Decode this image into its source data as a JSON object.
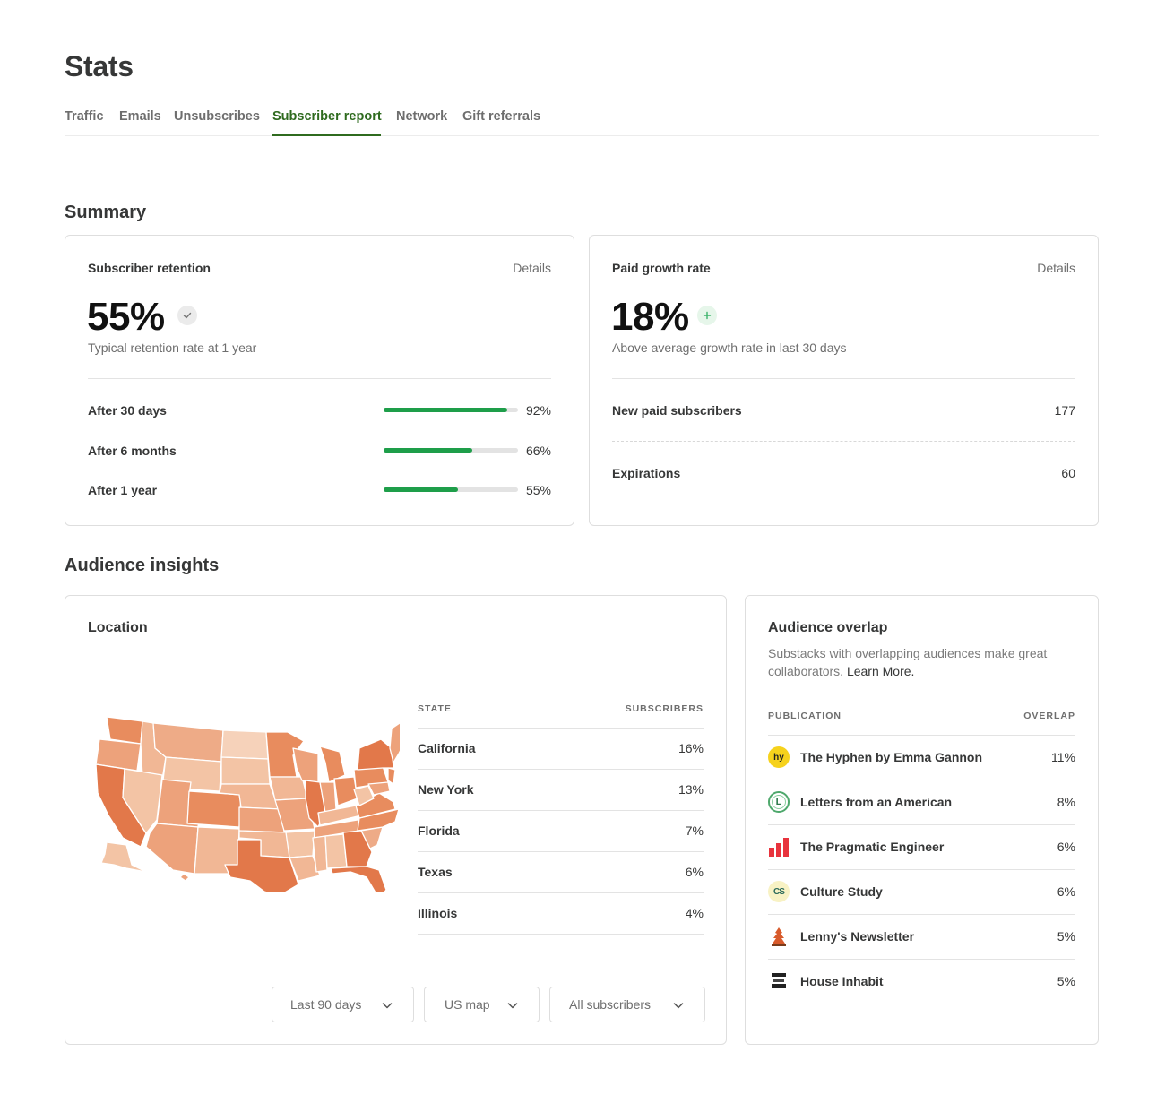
{
  "page": {
    "title": "Stats"
  },
  "tabs": [
    {
      "label": "Traffic"
    },
    {
      "label": "Emails"
    },
    {
      "label": "Unsubscribes"
    },
    {
      "label": "Subscriber report",
      "active": true
    },
    {
      "label": "Network"
    },
    {
      "label": "Gift referrals"
    }
  ],
  "summary": {
    "title": "Summary",
    "retention": {
      "label": "Subscriber retention",
      "details": "Details",
      "value": "55%",
      "badge_icon": "check-icon",
      "subtitle": "Typical retention rate at 1 year",
      "rows": [
        {
          "label": "After 30 days",
          "value": "92%",
          "fraction": 0.92
        },
        {
          "label": "After 6 months",
          "value": "66%",
          "fraction": 0.66
        },
        {
          "label": "After 1 year",
          "value": "55%",
          "fraction": 0.55
        }
      ]
    },
    "growth": {
      "label": "Paid growth rate",
      "details": "Details",
      "value": "18%",
      "badge_icon": "plus-icon",
      "subtitle": "Above average growth rate in last 30 days",
      "rows": [
        {
          "label": "New paid subscribers",
          "value": "177"
        },
        {
          "label": "Expirations",
          "value": "60"
        }
      ]
    }
  },
  "insights": {
    "title": "Audience insights",
    "location": {
      "label": "Location",
      "col_state": "STATE",
      "col_subscribers": "SUBSCRIBERS",
      "rows": [
        {
          "state": "California",
          "value": "16%"
        },
        {
          "state": "New York",
          "value": "13%"
        },
        {
          "state": "Florida",
          "value": "7%"
        },
        {
          "state": "Texas",
          "value": "6%"
        },
        {
          "state": "Illinois",
          "value": "4%"
        }
      ],
      "filters": [
        {
          "label": "Last 90 days"
        },
        {
          "label": "US map"
        },
        {
          "label": "All subscribers"
        }
      ]
    },
    "overlap": {
      "title": "Audience overlap",
      "description": "Substacks with overlapping audiences make great collaborators.",
      "learn_more": "Learn More.",
      "col_publication": "PUBLICATION",
      "col_overlap": "OVERLAP",
      "rows": [
        {
          "name": "The Hyphen by Emma Gannon",
          "value": "11%",
          "icon": "hyphen-logo-icon",
          "icon_text": "hy"
        },
        {
          "name": "Letters from an American",
          "value": "8%",
          "icon": "letters-logo-icon",
          "icon_text": "L"
        },
        {
          "name": "The Pragmatic Engineer",
          "value": "6%",
          "icon": "pragmatic-logo-icon"
        },
        {
          "name": "Culture Study",
          "value": "6%",
          "icon": "culture-study-logo-icon",
          "icon_text": "CS"
        },
        {
          "name": "Lenny's Newsletter",
          "value": "5%",
          "icon": "lenny-logo-icon"
        },
        {
          "name": "House Inhabit",
          "value": "5%",
          "icon": "house-inhabit-logo-icon"
        }
      ]
    }
  },
  "colors": {
    "accent_green": "#2f6b1f",
    "bar_green": "#1e9e4a",
    "map_dark": "#e2784a",
    "map_light": "#f3c4a5"
  }
}
